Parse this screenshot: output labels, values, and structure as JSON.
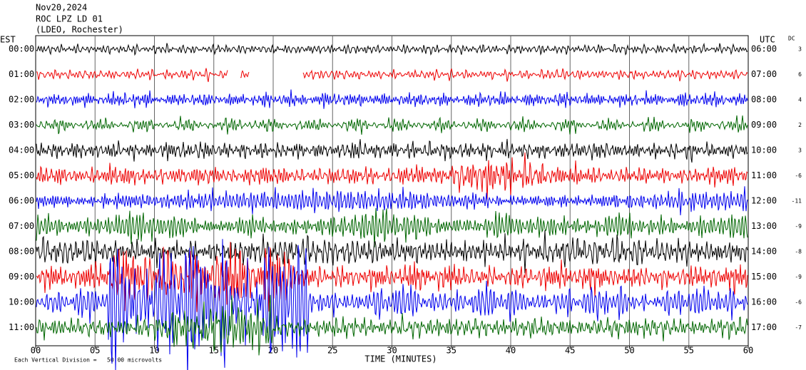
{
  "header": {
    "date": "Nov20,2024",
    "station": "ROC LPZ LD 01",
    "network": "(LDEO, Rochester)"
  },
  "left_label": "EST",
  "right_label": "UTC",
  "offset_label": "DC",
  "rows": [
    {
      "est": "00:00",
      "utc": "06:00",
      "dc": "3",
      "color": "#000000"
    },
    {
      "est": "01:00",
      "utc": "07:00",
      "dc": "6",
      "color": "#ee0000"
    },
    {
      "est": "02:00",
      "utc": "08:00",
      "dc": "4",
      "color": "#0000ee"
    },
    {
      "est": "03:00",
      "utc": "09:00",
      "dc": "2",
      "color": "#006600"
    },
    {
      "est": "04:00",
      "utc": "10:00",
      "dc": "3",
      "color": "#000000"
    },
    {
      "est": "05:00",
      "utc": "11:00",
      "dc": "-6",
      "color": "#ee0000"
    },
    {
      "est": "06:00",
      "utc": "12:00",
      "dc": "-11",
      "color": "#0000ee"
    },
    {
      "est": "07:00",
      "utc": "13:00",
      "dc": "-9",
      "color": "#006600"
    },
    {
      "est": "08:00",
      "utc": "14:00",
      "dc": "-8",
      "color": "#000000"
    },
    {
      "est": "09:00",
      "utc": "15:00",
      "dc": "-9",
      "color": "#ee0000"
    },
    {
      "est": "10:00",
      "utc": "16:00",
      "dc": "-6",
      "color": "#0000ee"
    },
    {
      "est": "11:00",
      "utc": "17:00",
      "dc": "-7",
      "color": "#006600"
    }
  ],
  "x_axis": {
    "title": "TIME (MINUTES)",
    "ticks": [
      "00",
      "05",
      "10",
      "15",
      "20",
      "25",
      "30",
      "35",
      "40",
      "45",
      "50",
      "55",
      "60"
    ]
  },
  "footer": {
    "scale_note": "Each Vertical Division =   50.00 microvolts"
  }
}
